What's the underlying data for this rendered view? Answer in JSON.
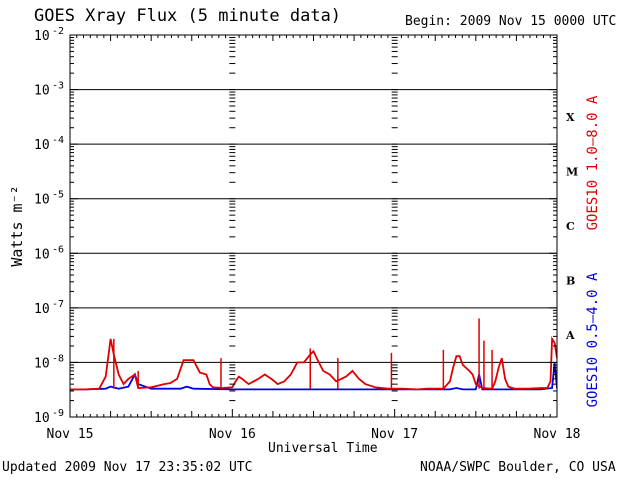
{
  "header": {
    "title": "GOES Xray Flux (5 minute data)",
    "begin": "Begin:  2009 Nov 15 0000 UTC"
  },
  "footer": {
    "updated": "Updated 2009 Nov 17 23:35:02 UTC",
    "credit": "NOAA/SWPC Boulder, CO USA"
  },
  "chart_data": {
    "type": "line",
    "title": "GOES Xray Flux (5 minute data)",
    "xlabel": "Universal Time",
    "ylabel": "Watts m⁻²",
    "xlim": [
      0,
      3
    ],
    "xticks": [
      "Nov 15",
      "Nov 16",
      "Nov 17",
      "Nov 18"
    ],
    "y_scale": "log",
    "ylim": [
      1e-09,
      0.01
    ],
    "yticks": [
      {
        "base": "10",
        "exp": "-9"
      },
      {
        "base": "10",
        "exp": "-8"
      },
      {
        "base": "10",
        "exp": "-7"
      },
      {
        "base": "10",
        "exp": "-6"
      },
      {
        "base": "10",
        "exp": "-5"
      },
      {
        "base": "10",
        "exp": "-4"
      },
      {
        "base": "10",
        "exp": "-3"
      },
      {
        "base": "10",
        "exp": "-2"
      }
    ],
    "flare_classes": [
      {
        "label": "A",
        "at": 1e-08
      },
      {
        "label": "B",
        "at": 1e-07
      },
      {
        "label": "C",
        "at": 1e-06
      },
      {
        "label": "M",
        "at": 1e-05
      },
      {
        "label": "X",
        "at": 0.0001
      }
    ],
    "grid": "horizontal at each decade from 1e-8 to 1e-3",
    "series": [
      {
        "name": "GOES10 1.0–8.0 A",
        "color": "#e00000",
        "points": [
          [
            0.0,
            3.2e-09
          ],
          [
            0.1,
            3.2e-09
          ],
          [
            0.18,
            3.3e-09
          ],
          [
            0.22,
            5.5e-09
          ],
          [
            0.25,
            2.7e-08
          ],
          [
            0.27,
            1.4e-08
          ],
          [
            0.3,
            6e-09
          ],
          [
            0.33,
            4e-09
          ],
          [
            0.36,
            5e-09
          ],
          [
            0.4,
            6e-09
          ],
          [
            0.42,
            3.4e-09
          ],
          [
            0.5,
            3.5e-09
          ],
          [
            0.58,
            4e-09
          ],
          [
            0.62,
            4.2e-09
          ],
          [
            0.66,
            5e-09
          ],
          [
            0.7,
            1.1e-08
          ],
          [
            0.76,
            1.1e-08
          ],
          [
            0.8,
            6.5e-09
          ],
          [
            0.84,
            6e-09
          ],
          [
            0.86,
            4e-09
          ],
          [
            0.88,
            3.5e-09
          ],
          [
            0.94,
            3.4e-09
          ],
          [
            1.0,
            3.5e-09
          ],
          [
            1.02,
            4.5e-09
          ],
          [
            1.04,
            5.5e-09
          ],
          [
            1.06,
            5e-09
          ],
          [
            1.1,
            4e-09
          ],
          [
            1.16,
            5e-09
          ],
          [
            1.2,
            6e-09
          ],
          [
            1.24,
            5e-09
          ],
          [
            1.28,
            4e-09
          ],
          [
            1.32,
            4.5e-09
          ],
          [
            1.36,
            6e-09
          ],
          [
            1.4,
            1e-08
          ],
          [
            1.44,
            1e-08
          ],
          [
            1.48,
            1.4e-08
          ],
          [
            1.5,
            1.6e-08
          ],
          [
            1.52,
            1.2e-08
          ],
          [
            1.56,
            7e-09
          ],
          [
            1.6,
            6e-09
          ],
          [
            1.64,
            4.5e-09
          ],
          [
            1.7,
            5.5e-09
          ],
          [
            1.74,
            7e-09
          ],
          [
            1.78,
            5e-09
          ],
          [
            1.82,
            4e-09
          ],
          [
            1.88,
            3.5e-09
          ],
          [
            1.96,
            3.3e-09
          ],
          [
            2.04,
            3.3e-09
          ],
          [
            2.14,
            3.2e-09
          ],
          [
            2.2,
            3.3e-09
          ],
          [
            2.3,
            3.3e-09
          ],
          [
            2.34,
            4.5e-09
          ],
          [
            2.36,
            8e-09
          ],
          [
            2.38,
            1.3e-08
          ],
          [
            2.4,
            1.3e-08
          ],
          [
            2.42,
            9e-09
          ],
          [
            2.46,
            7e-09
          ],
          [
            2.48,
            6e-09
          ],
          [
            2.5,
            4e-09
          ],
          [
            2.54,
            3.4e-09
          ],
          [
            2.6,
            3.3e-09
          ],
          [
            2.62,
            4.5e-09
          ],
          [
            2.64,
            8e-09
          ],
          [
            2.66,
            1.2e-08
          ],
          [
            2.68,
            5e-09
          ],
          [
            2.7,
            3.6e-09
          ],
          [
            2.74,
            3.3e-09
          ],
          [
            2.82,
            3.3e-09
          ],
          [
            2.9,
            3.4e-09
          ],
          [
            2.94,
            3.4e-09
          ],
          [
            2.96,
            4.5e-09
          ],
          [
            2.97,
            2.7e-08
          ],
          [
            2.985,
            2.3e-08
          ],
          [
            3.0,
            1.2e-08
          ]
        ],
        "spikes": [
          [
            0.27,
            2.7e-08
          ],
          [
            0.42,
            7e-09
          ],
          [
            0.93,
            1.2e-08
          ],
          [
            1.48,
            1.8e-08
          ],
          [
            1.65,
            1.2e-08
          ],
          [
            1.98,
            1.5e-08
          ],
          [
            2.3,
            1.7e-08
          ],
          [
            2.52,
            6.4e-08
          ],
          [
            2.55,
            2.5e-08
          ],
          [
            2.6,
            1.7e-08
          ]
        ]
      },
      {
        "name": "GOES10 0.5–4.0 A",
        "color": "#0000e6",
        "points": [
          [
            0.0,
            3.2e-09
          ],
          [
            0.1,
            3.2e-09
          ],
          [
            0.22,
            3.3e-09
          ],
          [
            0.25,
            3.6e-09
          ],
          [
            0.3,
            3.3e-09
          ],
          [
            0.36,
            3.6e-09
          ],
          [
            0.4,
            6e-09
          ],
          [
            0.42,
            4e-09
          ],
          [
            0.5,
            3.3e-09
          ],
          [
            0.68,
            3.3e-09
          ],
          [
            0.72,
            3.6e-09
          ],
          [
            0.76,
            3.3e-09
          ],
          [
            1.0,
            3.2e-09
          ],
          [
            1.5,
            3.2e-09
          ],
          [
            2.0,
            3.2e-09
          ],
          [
            2.34,
            3.2e-09
          ],
          [
            2.38,
            3.4e-09
          ],
          [
            2.42,
            3.2e-09
          ],
          [
            2.5,
            3.2e-09
          ],
          [
            2.52,
            6e-09
          ],
          [
            2.54,
            3.2e-09
          ],
          [
            2.9,
            3.2e-09
          ],
          [
            2.97,
            3.4e-09
          ],
          [
            2.985,
            1e-08
          ],
          [
            3.0,
            3.4e-09
          ]
        ]
      }
    ]
  }
}
